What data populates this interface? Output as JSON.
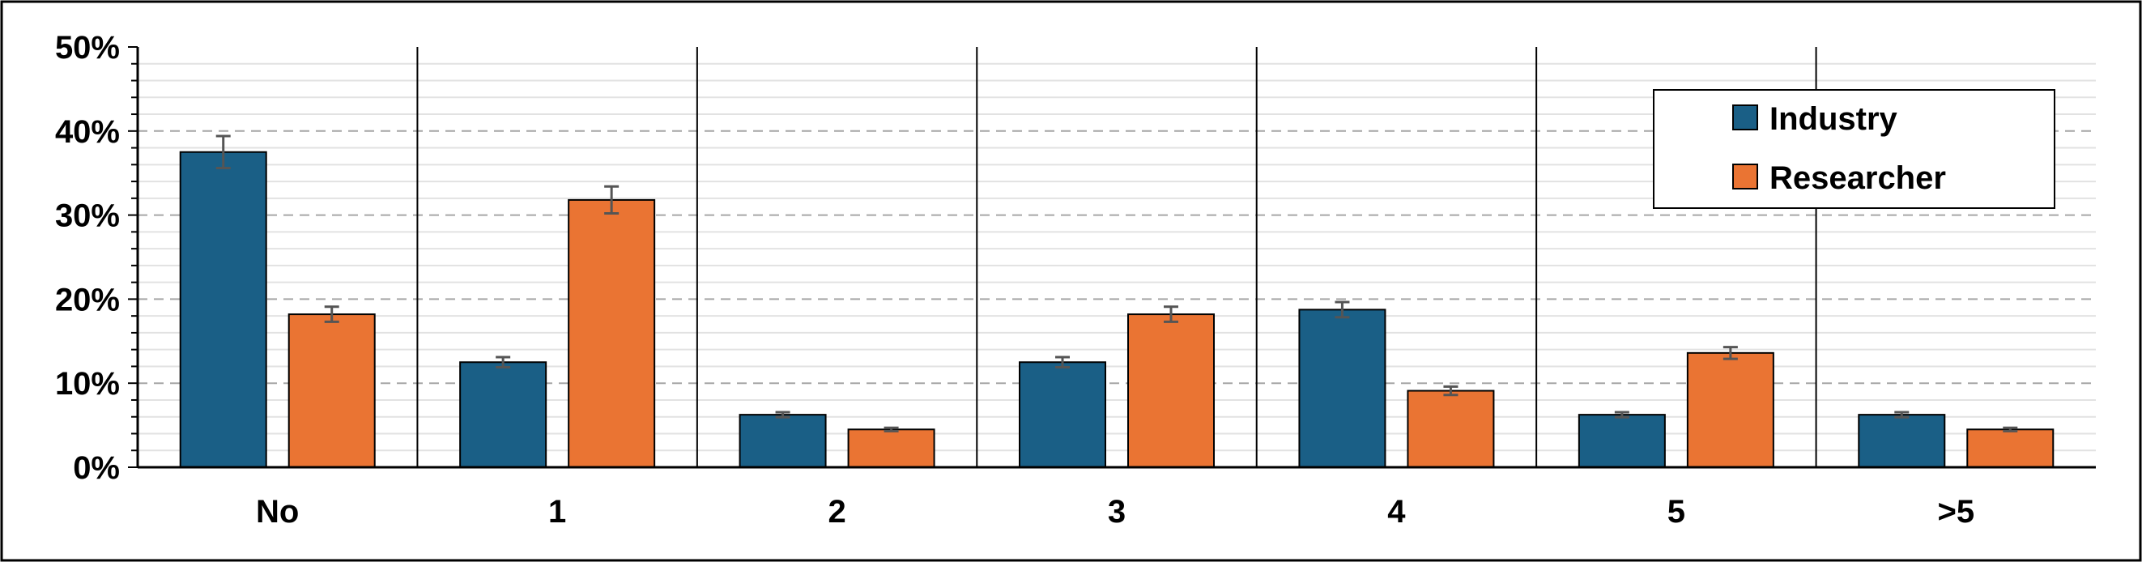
{
  "chart_data": {
    "type": "bar",
    "categories": [
      "No",
      "1",
      "2",
      "3",
      "4",
      "5",
      ">5"
    ],
    "series": [
      {
        "name": "Industry",
        "color": "#1a5f86",
        "values": [
          37.5,
          12.5,
          6.25,
          12.5,
          18.75,
          6.25,
          6.25
        ],
        "errors": [
          1.9,
          0.6,
          0.3,
          0.6,
          0.9,
          0.3,
          0.3
        ]
      },
      {
        "name": "Researcher",
        "color": "#ea7433",
        "values": [
          18.2,
          31.8,
          4.5,
          18.2,
          9.1,
          13.6,
          4.5
        ],
        "errors": [
          0.9,
          1.6,
          0.2,
          0.9,
          0.5,
          0.7,
          0.2
        ]
      }
    ],
    "ylim": [
      0,
      50
    ],
    "yticks": [
      "0%",
      "10%",
      "20%",
      "30%",
      "40%",
      "50%"
    ],
    "ytick_values": [
      0,
      10,
      20,
      30,
      40,
      50
    ],
    "title": "",
    "xlabel": "",
    "ylabel": "",
    "grid": "major dashed, minor solid",
    "legend_position": "top-right",
    "error_bar_color": "#555555",
    "frame_color": "#000000"
  }
}
